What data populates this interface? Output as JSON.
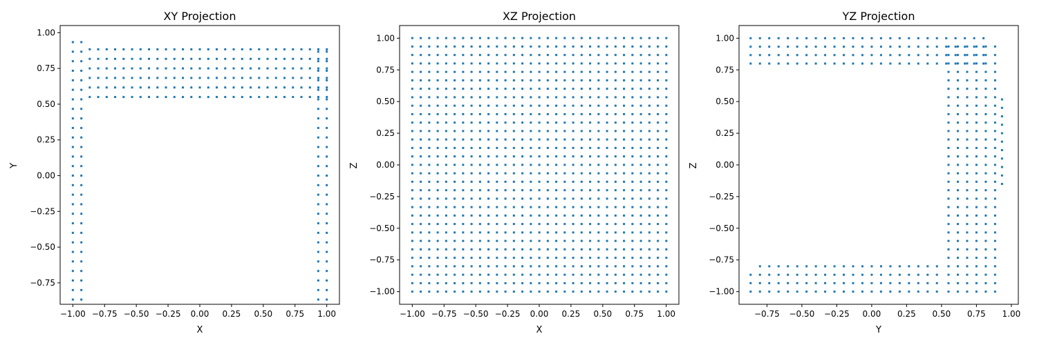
{
  "chart_data": [
    {
      "type": "scatter",
      "title": "XY Projection",
      "xlabel": "X",
      "ylabel": "Y",
      "xlim": [
        -1.1,
        1.1
      ],
      "ylim": [
        -0.9,
        1.05
      ],
      "xticks": [
        -1.0,
        -0.75,
        -0.5,
        -0.25,
        0.0,
        0.25,
        0.5,
        0.75,
        1.0
      ],
      "xtick_labels": [
        "−1.00",
        "−0.75",
        "−0.50",
        "−0.25",
        "0.00",
        "0.25",
        "0.50",
        "0.75",
        "1.00"
      ],
      "yticks": [
        -0.75,
        -0.5,
        -0.25,
        0.0,
        0.25,
        0.5,
        0.75,
        1.0
      ],
      "ytick_labels": [
        "−0.75",
        "−0.50",
        "−0.25",
        "0.00",
        "0.25",
        "0.50",
        "0.75",
        "1.00"
      ],
      "grid": false,
      "marker_color": "#1f77b4",
      "regions": [
        {
          "x": [
            -1.0,
            -0.933
          ],
          "y_range": [
            -0.867,
            0.933
          ],
          "y_step": 0.0667
        },
        {
          "x": [
            0.933,
            1.0
          ],
          "y_range": [
            -0.867,
            0.867
          ],
          "y_step": 0.0667
        },
        {
          "x_range": [
            -0.867,
            1.0
          ],
          "x_step": 0.0667,
          "y_range": [
            0.55,
            0.867
          ],
          "y_step": 0.0667
        }
      ]
    },
    {
      "type": "scatter",
      "title": "XZ Projection",
      "xlabel": "X",
      "ylabel": "Z",
      "xlim": [
        -1.1,
        1.1
      ],
      "ylim": [
        -1.1,
        1.1
      ],
      "xticks": [
        -1.0,
        -0.75,
        -0.5,
        -0.25,
        0.0,
        0.25,
        0.5,
        0.75,
        1.0
      ],
      "xtick_labels": [
        "−1.00",
        "−0.75",
        "−0.50",
        "−0.25",
        "0.00",
        "0.25",
        "0.50",
        "0.75",
        "1.00"
      ],
      "yticks": [
        -1.0,
        -0.75,
        -0.5,
        -0.25,
        0.0,
        0.25,
        0.5,
        0.75,
        1.0
      ],
      "ytick_labels": [
        "−1.00",
        "−0.75",
        "−0.50",
        "−0.25",
        "0.00",
        "0.25",
        "0.50",
        "0.75",
        "1.00"
      ],
      "grid": false,
      "marker_color": "#1f77b4",
      "regions": [
        {
          "x_range": [
            -1.0,
            1.0
          ],
          "x_step": 0.0667,
          "y_range": [
            -1.0,
            1.0
          ],
          "y_step": 0.0667
        }
      ]
    },
    {
      "type": "scatter",
      "title": "YZ Projection",
      "xlabel": "Y",
      "ylabel": "Z",
      "xlim": [
        -0.95,
        1.05
      ],
      "ylim": [
        -1.1,
        1.1
      ],
      "xticks": [
        -0.75,
        -0.5,
        -0.25,
        0.0,
        0.25,
        0.5,
        0.75,
        1.0
      ],
      "xtick_labels": [
        "−0.75",
        "−0.50",
        "−0.25",
        "0.00",
        "0.25",
        "0.50",
        "0.75",
        "1.00"
      ],
      "yticks": [
        -1.0,
        -0.75,
        -0.5,
        -0.25,
        0.0,
        0.25,
        0.5,
        0.75,
        1.0
      ],
      "ytick_labels": [
        "−1.00",
        "−0.75",
        "−0.50",
        "−0.25",
        "0.00",
        "0.25",
        "0.50",
        "0.75",
        "1.00"
      ],
      "grid": false,
      "marker_color": "#1f77b4",
      "regions": [
        {
          "x_range": [
            -0.867,
            0.8
          ],
          "x_step": 0.0667,
          "y": [
            0.8,
            0.867,
            0.933,
            1.0
          ]
        },
        {
          "x_range": [
            -0.867,
            0.5
          ],
          "x_step": 0.0667,
          "y": [
            -1.0,
            -0.933,
            -0.867
          ]
        },
        {
          "x_range": [
            -0.8,
            0.5
          ],
          "x_step": 0.0667,
          "y": [
            -0.8
          ]
        },
        {
          "x_range": [
            0.55,
            0.867
          ],
          "x_step": 0.0667,
          "y_range": [
            -1.0,
            0.933
          ],
          "y_step": 0.0667
        },
        {
          "x": [
            0.933
          ],
          "y_range": [
            -0.15,
            0.55
          ],
          "y_step": 0.0667
        }
      ]
    }
  ]
}
